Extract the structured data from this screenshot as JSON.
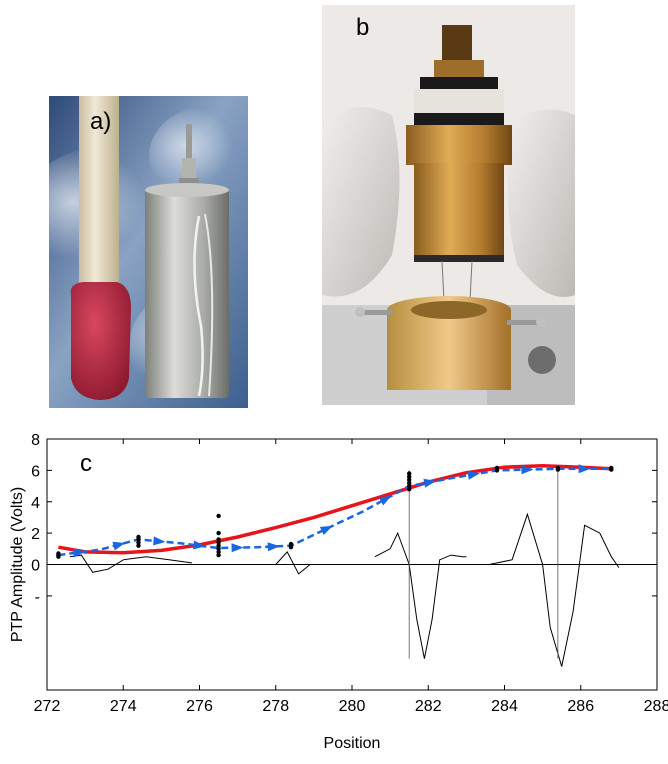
{
  "panels": {
    "a": {
      "label": "a)"
    },
    "b": {
      "label": "b"
    },
    "c": {
      "label": "c"
    }
  },
  "colors": {
    "fit_curve": "#e8141b",
    "tracked": "#1a66e0",
    "waveform": "#000000",
    "match_head": "#b8253f",
    "match_stick": "#e9dfc9",
    "electrode_can": "#b9bab5",
    "brass": "#c9953a",
    "glove": "#e2dfdc"
  },
  "chart_data": {
    "type": "line",
    "xlabel": "Position",
    "ylabel": "PTP Amplitude (Volts)",
    "xlim": [
      272,
      288
    ],
    "ylim": [
      -8,
      8
    ],
    "x_ticks": [
      272,
      274,
      276,
      278,
      280,
      282,
      284,
      286,
      288
    ],
    "y_ticks": [
      {
        "value": 8,
        "label": "8"
      },
      {
        "value": 6,
        "label": "6"
      },
      {
        "value": 4,
        "label": "4"
      },
      {
        "value": 2,
        "label": "2"
      },
      {
        "value": 0,
        "label": "0"
      },
      {
        "value": -2,
        "label": "-"
      }
    ],
    "series": [
      {
        "style": "solid-red",
        "x": [
          272.3,
          273.0,
          274.0,
          275.0,
          276.0,
          277.0,
          278.0,
          279.0,
          280.0,
          281.0,
          282.0,
          283.0,
          284.0,
          285.0,
          286.0,
          286.8
        ],
        "y": [
          1.1,
          0.8,
          0.75,
          0.9,
          1.25,
          1.75,
          2.35,
          3.0,
          3.75,
          4.5,
          5.25,
          5.85,
          6.2,
          6.3,
          6.2,
          6.1
        ]
      },
      {
        "style": "dashed-blue-arrows",
        "x": [
          272.3,
          273.4,
          274.4,
          275.5,
          276.5,
          277.5,
          278.4,
          280.3,
          281.5,
          282.6,
          283.8,
          285.4,
          286.8
        ],
        "y": [
          0.6,
          0.95,
          1.6,
          1.35,
          1.05,
          1.1,
          1.2,
          3.4,
          5.0,
          5.5,
          6.0,
          6.1,
          6.1
        ]
      }
    ],
    "scatter_clusters": [
      {
        "x": 272.3,
        "y": [
          0.5,
          0.6,
          0.7
        ]
      },
      {
        "x": 274.4,
        "y": [
          1.2,
          1.4,
          1.6,
          1.75
        ]
      },
      {
        "x": 276.5,
        "y": [
          0.6,
          0.8,
          1.0,
          1.2,
          1.4,
          1.6,
          2.0,
          3.1
        ]
      },
      {
        "x": 278.4,
        "y": [
          1.1,
          1.2,
          1.3
        ]
      },
      {
        "x": 281.5,
        "y": [
          4.8,
          5.0,
          5.2,
          5.4,
          5.6,
          5.8
        ]
      },
      {
        "x": 283.8,
        "y": [
          6.0,
          6.15
        ]
      },
      {
        "x": 285.4,
        "y": [
          6.05,
          6.15
        ]
      },
      {
        "x": 286.8,
        "y": [
          6.05,
          6.15
        ]
      }
    ],
    "waveforms": [
      {
        "x": [
          272.6,
          272.9,
          273.2,
          273.6,
          274.0,
          274.6,
          275.2,
          275.8
        ],
        "y": [
          0.5,
          0.6,
          -0.5,
          -0.3,
          0.3,
          0.5,
          0.3,
          0.1
        ]
      },
      {
        "x": [
          278.0,
          278.3,
          278.6,
          278.9
        ],
        "y": [
          0.0,
          0.8,
          -0.6,
          0.0
        ]
      },
      {
        "x": [
          280.6,
          281.0,
          281.2,
          281.5,
          281.7,
          281.9,
          282.1,
          282.3,
          282.6,
          282.9,
          283.0
        ],
        "y": [
          0.5,
          1.0,
          2.0,
          0.0,
          -3.5,
          -6.0,
          -3.5,
          0.3,
          0.6,
          0.5,
          0.5
        ]
      },
      {
        "x": [
          283.6,
          284.2,
          284.6,
          285.0,
          285.2,
          285.5,
          285.8,
          286.1,
          286.5,
          286.8,
          287.0
        ],
        "y": [
          0.0,
          0.3,
          3.2,
          0.0,
          -4.0,
          -6.5,
          -3.0,
          2.5,
          2.0,
          0.5,
          -0.2
        ]
      }
    ],
    "vertical_markers": [
      281.5,
      285.4
    ]
  }
}
